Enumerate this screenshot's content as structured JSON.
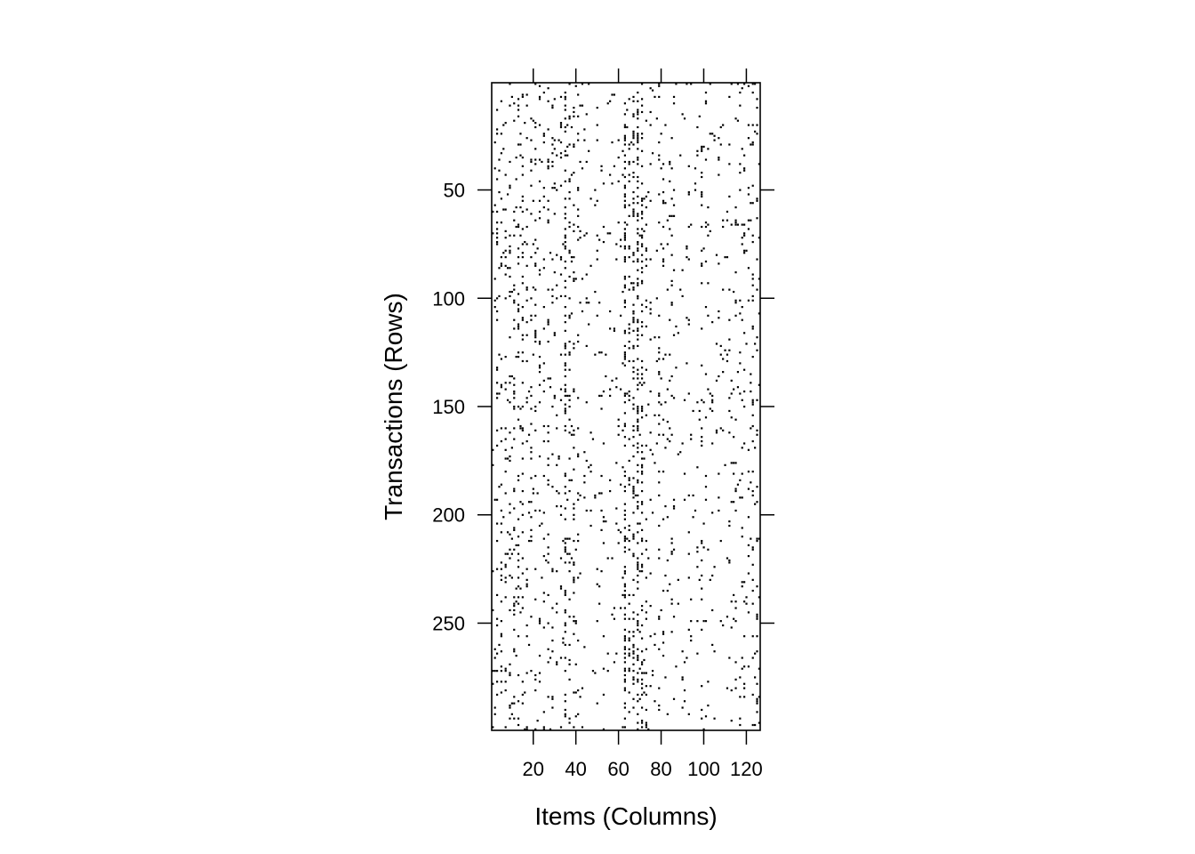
{
  "chart_data": {
    "type": "heatmap",
    "subtype": "binary incidence matrix image",
    "title": "",
    "xlabel": "Items (Columns)",
    "ylabel": "Transactions (Rows)",
    "xlim": [
      1,
      126
    ],
    "ylim": [
      1,
      299
    ],
    "y_reversed": true,
    "x_ticks": [
      20,
      40,
      60,
      80,
      100,
      120
    ],
    "y_ticks": [
      50,
      100,
      150,
      200,
      250
    ],
    "cell_color": "#000000",
    "background_color": "#ffffff",
    "frequent_columns": [
      {
        "col": 3,
        "p": 0.14
      },
      {
        "col": 5,
        "p": 0.12
      },
      {
        "col": 7,
        "p": 0.1
      },
      {
        "col": 9,
        "p": 0.1
      },
      {
        "col": 11,
        "p": 0.1
      },
      {
        "col": 13,
        "p": 0.12
      },
      {
        "col": 15,
        "p": 0.12
      },
      {
        "col": 17,
        "p": 0.1
      },
      {
        "col": 19,
        "p": 0.1
      },
      {
        "col": 21,
        "p": 0.1
      },
      {
        "col": 23,
        "p": 0.09
      },
      {
        "col": 25,
        "p": 0.09
      },
      {
        "col": 27,
        "p": 0.08
      },
      {
        "col": 29,
        "p": 0.07
      },
      {
        "col": 31,
        "p": 0.06
      },
      {
        "col": 33,
        "p": 0.08
      },
      {
        "col": 35,
        "p": 0.28
      },
      {
        "col": 37,
        "p": 0.12
      },
      {
        "col": 39,
        "p": 0.12
      },
      {
        "col": 41,
        "p": 0.06
      },
      {
        "col": 63,
        "p": 0.3
      },
      {
        "col": 65,
        "p": 0.16
      },
      {
        "col": 67,
        "p": 0.26
      },
      {
        "col": 69,
        "p": 0.32
      },
      {
        "col": 71,
        "p": 0.24
      },
      {
        "col": 73,
        "p": 0.1
      },
      {
        "col": 75,
        "p": 0.06
      },
      {
        "col": 79,
        "p": 0.1
      },
      {
        "col": 81,
        "p": 0.08
      },
      {
        "col": 83,
        "p": 0.06
      },
      {
        "col": 85,
        "p": 0.05
      },
      {
        "col": 99,
        "p": 0.08
      },
      {
        "col": 101,
        "p": 0.06
      },
      {
        "col": 115,
        "p": 0.06
      },
      {
        "col": 117,
        "p": 0.06
      },
      {
        "col": 119,
        "p": 0.06
      },
      {
        "col": 121,
        "p": 0.06
      },
      {
        "col": 123,
        "p": 0.08
      },
      {
        "col": 125,
        "p": 0.12
      }
    ],
    "background_density": 0.025
  }
}
